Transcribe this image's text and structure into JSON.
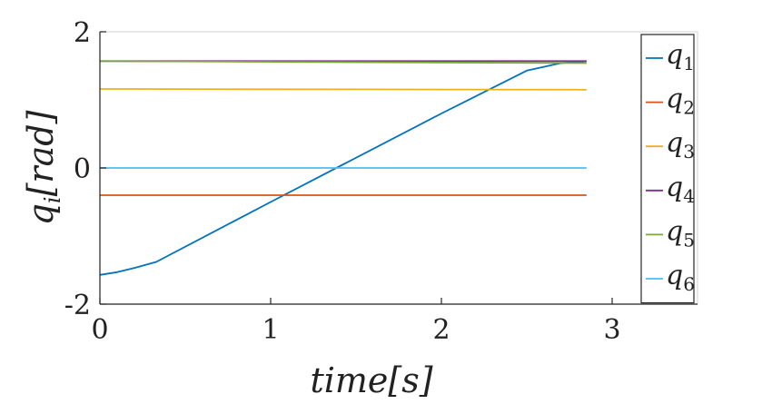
{
  "chart_data": {
    "type": "line",
    "xlabel": "time[s]",
    "ylabel": "q_i[rad]",
    "xlim": [
      0,
      3.5
    ],
    "ylim": [
      -2,
      2
    ],
    "xticks": [
      0,
      1,
      2,
      3
    ],
    "yticks": [
      -2,
      0,
      2
    ],
    "xtick_labels": [
      "0",
      "1",
      "2",
      "3"
    ],
    "ytick_labels": [
      "-2",
      "0",
      "2"
    ],
    "grid": false,
    "legend_position": "right",
    "series": [
      {
        "name": "q1",
        "base": "q",
        "sub": "1",
        "color": "#0072BD",
        "x": [
          0,
          0.1,
          0.2,
          0.33,
          1.0,
          2.0,
          2.5,
          2.7,
          2.85
        ],
        "y": [
          -1.57,
          -1.53,
          -1.47,
          -1.38,
          -0.5,
          0.8,
          1.43,
          1.54,
          1.57
        ]
      },
      {
        "name": "q2",
        "base": "q",
        "sub": "2",
        "color": "#D95319",
        "x": [
          0,
          2.85
        ],
        "y": [
          -0.4,
          -0.4
        ]
      },
      {
        "name": "q3",
        "base": "q",
        "sub": "3",
        "color": "#EDB120",
        "x": [
          0,
          2.85
        ],
        "y": [
          1.16,
          1.15
        ]
      },
      {
        "name": "q4",
        "base": "q",
        "sub": "4",
        "color": "#7E2F8E",
        "x": [
          0,
          2.85
        ],
        "y": [
          1.57,
          1.57
        ]
      },
      {
        "name": "q5",
        "base": "q",
        "sub": "5",
        "color": "#77AC30",
        "x": [
          0,
          2.85
        ],
        "y": [
          1.57,
          1.54
        ]
      },
      {
        "name": "q6",
        "base": "q",
        "sub": "6",
        "color": "#4DBEEE",
        "x": [
          0,
          2.85
        ],
        "y": [
          0.0,
          0.0
        ]
      }
    ]
  }
}
